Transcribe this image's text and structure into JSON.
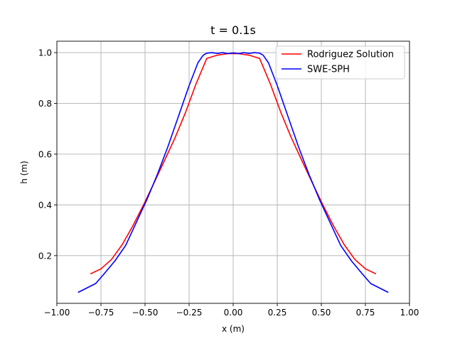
{
  "chart_data": {
    "type": "line",
    "title": "t = 0.1s",
    "xlabel": "x (m)",
    "ylabel": "h (m)",
    "xlim": [
      -1.0,
      1.0
    ],
    "ylim": [
      0.012,
      1.045
    ],
    "grid": true,
    "legend_position": "top-right",
    "x_ticks": [
      -1.0,
      -0.75,
      -0.5,
      -0.25,
      0.0,
      0.25,
      0.5,
      0.75,
      1.0
    ],
    "x_tick_labels": [
      "−1.00",
      "−0.75",
      "−0.50",
      "−0.25",
      "0.00",
      "0.25",
      "0.50",
      "0.75",
      "1.00"
    ],
    "y_ticks": [
      0.2,
      0.4,
      0.6,
      0.8,
      1.0
    ],
    "y_tick_labels": [
      "0.2",
      "0.4",
      "0.6",
      "0.8",
      "1.0"
    ],
    "series": [
      {
        "name": "Rodriguez Solution",
        "color": "#ff0000",
        "x": [
          -0.81,
          -0.75,
          -0.69,
          -0.63,
          -0.57,
          -0.51,
          -0.45,
          -0.39,
          -0.33,
          -0.27,
          -0.21,
          -0.15,
          -0.09,
          -0.03,
          0.03,
          0.09,
          0.15,
          0.21,
          0.27,
          0.33,
          0.39,
          0.45,
          0.51,
          0.57,
          0.63,
          0.69,
          0.75,
          0.81
        ],
        "y": [
          0.128,
          0.148,
          0.185,
          0.243,
          0.316,
          0.398,
          0.485,
          0.574,
          0.664,
          0.765,
          0.878,
          0.977,
          0.99,
          0.996,
          0.996,
          0.99,
          0.977,
          0.878,
          0.765,
          0.664,
          0.574,
          0.485,
          0.398,
          0.316,
          0.243,
          0.185,
          0.148,
          0.128
        ]
      },
      {
        "name": "SWE-SPH",
        "color": "#0000ff",
        "x": [
          -0.88,
          -0.78,
          -0.73,
          -0.67,
          -0.61,
          -0.55,
          -0.49,
          -0.43,
          -0.37,
          -0.31,
          -0.25,
          -0.2,
          -0.17,
          -0.15,
          -0.12,
          -0.09,
          -0.06,
          -0.03,
          0.0,
          0.03,
          0.06,
          0.09,
          0.12,
          0.15,
          0.17,
          0.2,
          0.25,
          0.31,
          0.37,
          0.43,
          0.49,
          0.55,
          0.61,
          0.67,
          0.73,
          0.78,
          0.88
        ],
        "y": [
          0.055,
          0.09,
          0.13,
          0.18,
          0.24,
          0.33,
          0.42,
          0.52,
          0.63,
          0.75,
          0.87,
          0.96,
          0.99,
          0.998,
          1.0,
          0.997,
          1.0,
          0.996,
          0.999,
          0.996,
          1.0,
          0.997,
          1.0,
          0.998,
          0.99,
          0.96,
          0.87,
          0.75,
          0.63,
          0.52,
          0.42,
          0.33,
          0.24,
          0.18,
          0.13,
          0.09,
          0.055
        ]
      }
    ]
  }
}
